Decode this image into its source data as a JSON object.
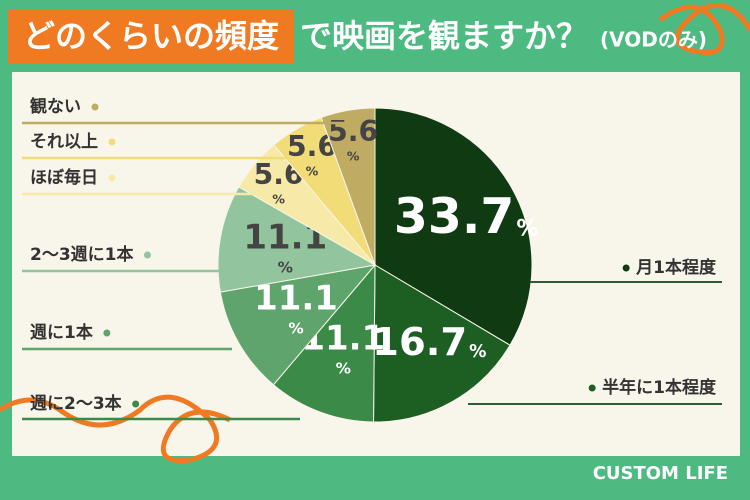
{
  "chart_data": {
    "type": "pie",
    "title_highlight": "どのくらいの頻度",
    "title": "で映画を観ますか？",
    "subtitle": "(VODのみ)",
    "categories": [
      "月1本程度",
      "半年に1本程度",
      "週に2〜3本",
      "週に1本",
      "2〜3週に1本",
      "ほぼ毎日",
      "それ以上",
      "観ない"
    ],
    "values": [
      33.7,
      16.7,
      11.1,
      11.1,
      11.1,
      5.6,
      5.6,
      5.6
    ],
    "unit": "%",
    "colors": [
      "#0f3a12",
      "#1d5e22",
      "#3b8a48",
      "#5fa46c",
      "#92c59e",
      "#f7eaa8",
      "#f2dc78",
      "#c0ab63"
    ],
    "brand": "CUSTOM LIFE"
  }
}
